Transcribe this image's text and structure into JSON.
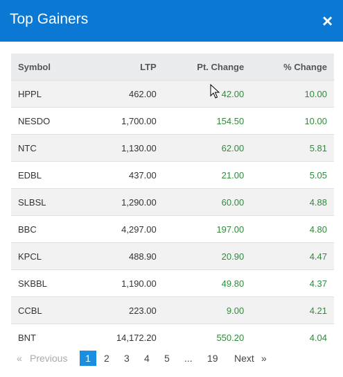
{
  "modal": {
    "title": "Top Gainers",
    "close_symbol": "×"
  },
  "table": {
    "headers": [
      "Symbol",
      "LTP",
      "Pt. Change",
      "% Change"
    ],
    "rows": [
      [
        "HPPL",
        "462.00",
        "42.00",
        "10.00"
      ],
      [
        "NESDO",
        "1,700.00",
        "154.50",
        "10.00"
      ],
      [
        "NTC",
        "1,130.00",
        "62.00",
        "5.81"
      ],
      [
        "EDBL",
        "437.00",
        "21.00",
        "5.05"
      ],
      [
        "SLBSL",
        "1,290.00",
        "60.00",
        "4.88"
      ],
      [
        "BBC",
        "4,297.00",
        "197.00",
        "4.80"
      ],
      [
        "KPCL",
        "488.90",
        "20.90",
        "4.47"
      ],
      [
        "SKBBL",
        "1,190.00",
        "49.80",
        "4.37"
      ],
      [
        "CCBL",
        "223.00",
        "9.00",
        "4.21"
      ],
      [
        "BNT",
        "14,172.20",
        "550.20",
        "4.04"
      ]
    ]
  },
  "pagination": {
    "first_symbol": "«",
    "previous": "Previous",
    "pages": [
      "1",
      "2",
      "3",
      "4",
      "5",
      "...",
      "19"
    ],
    "active_page": "1",
    "next": "Next",
    "last_symbol": "»"
  },
  "colors": {
    "header_bg": "#0b78d4",
    "positive": "#2e8b3a",
    "active_page": "#1a8fe0",
    "table_header_bg": "#eaecef"
  }
}
